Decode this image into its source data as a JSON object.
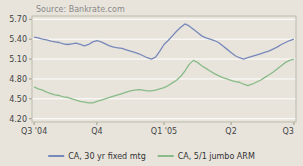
{
  "chart_data": {
    "type": "line",
    "title": "Source: Bankrate.com",
    "categories": [
      "Q3 '04",
      null,
      null,
      null,
      null,
      null,
      null,
      null,
      null,
      null,
      null,
      null,
      null,
      null,
      null,
      "Q4",
      null,
      null,
      null,
      null,
      null,
      null,
      null,
      null,
      null,
      null,
      null,
      null,
      null,
      null,
      null,
      "Q1 '05",
      null,
      null,
      null,
      null,
      null,
      null,
      null,
      null,
      null,
      null,
      null,
      null,
      null,
      null,
      null,
      "Q2",
      null,
      null,
      null,
      null,
      null,
      null,
      null,
      null,
      null,
      null,
      null,
      null,
      null,
      null,
      "Q3"
    ],
    "series": [
      {
        "name": "CA, 30 yr fixed mtg",
        "color": "#7788bb",
        "values": [
          5.43,
          5.42,
          5.4,
          5.39,
          5.37,
          5.36,
          5.35,
          5.33,
          5.32,
          5.33,
          5.34,
          5.32,
          5.3,
          5.32,
          5.36,
          5.38,
          5.36,
          5.33,
          5.3,
          5.28,
          5.27,
          5.26,
          5.24,
          5.22,
          5.2,
          5.18,
          5.15,
          5.12,
          5.1,
          5.13,
          5.22,
          5.32,
          5.38,
          5.45,
          5.52,
          5.58,
          5.63,
          5.6,
          5.55,
          5.5,
          5.45,
          5.42,
          5.4,
          5.38,
          5.35,
          5.3,
          5.25,
          5.2,
          5.15,
          5.12,
          5.1,
          5.12,
          5.14,
          5.16,
          5.18,
          5.2,
          5.22,
          5.25,
          5.28,
          5.32,
          5.35,
          5.38,
          5.4
        ]
      },
      {
        "name": "CA, 5/1 jumbo ARM",
        "color": "#88bb88",
        "values": [
          4.68,
          4.65,
          4.63,
          4.6,
          4.58,
          4.56,
          4.55,
          4.53,
          4.52,
          4.5,
          4.48,
          4.46,
          4.45,
          4.44,
          4.44,
          4.46,
          4.48,
          4.5,
          4.52,
          4.54,
          4.56,
          4.58,
          4.6,
          4.62,
          4.63,
          4.64,
          4.63,
          4.62,
          4.62,
          4.63,
          4.65,
          4.67,
          4.7,
          4.74,
          4.78,
          4.84,
          4.92,
          5.02,
          5.08,
          5.05,
          5.0,
          4.96,
          4.92,
          4.88,
          4.85,
          4.82,
          4.8,
          4.78,
          4.76,
          4.75,
          4.72,
          4.7,
          4.72,
          4.75,
          4.78,
          4.82,
          4.86,
          4.9,
          4.95,
          5.0,
          5.05,
          5.08,
          5.1
        ]
      }
    ],
    "ylim": [
      4.15,
      5.75
    ],
    "yticks": [
      {
        "value": 4.2,
        "label": "4.20"
      },
      {
        "value": 4.5,
        "label": "4.50"
      },
      {
        "value": 4.8,
        "label": "4.80"
      },
      {
        "value": 5.1,
        "label": "5.10"
      },
      {
        "value": 5.4,
        "label": "5.40"
      },
      {
        "value": 5.7,
        "label": "5.70"
      }
    ],
    "grid": true,
    "legend": "bottom"
  }
}
